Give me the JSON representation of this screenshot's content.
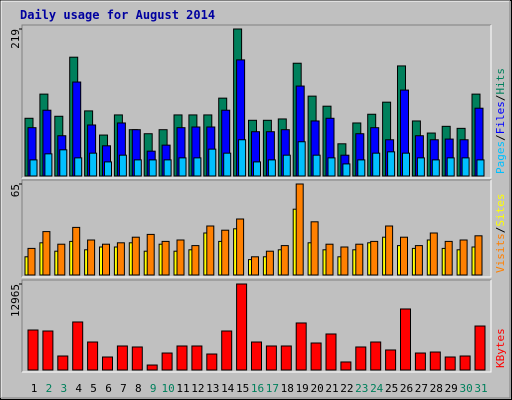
{
  "chart_data": [
    {
      "type": "bar",
      "title": "Daily usage for August 2014",
      "ylim": [
        0,
        219
      ],
      "yticks": [
        219
      ],
      "legend_separator": "/",
      "series": [
        {
          "name": "Hits",
          "color": "#00805c",
          "values": [
            86,
            122,
            89,
            177,
            97,
            61,
            91,
            69,
            63,
            69,
            91,
            91,
            91,
            116,
            219,
            83,
            83,
            85,
            168,
            119,
            104,
            48,
            79,
            92,
            110,
            164,
            82,
            64,
            74,
            71,
            122
          ]
        },
        {
          "name": "Files",
          "color": "#0000ff",
          "values": [
            72,
            98,
            60,
            140,
            76,
            45,
            79,
            69,
            37,
            46,
            72,
            73,
            73,
            98,
            173,
            66,
            66,
            69,
            134,
            82,
            86,
            31,
            63,
            72,
            54,
            128,
            60,
            54,
            55,
            54,
            101
          ]
        },
        {
          "name": "Pages",
          "color": "#00c0ff",
          "values": [
            24,
            33,
            39,
            27,
            34,
            21,
            31,
            24,
            24,
            24,
            27,
            27,
            40,
            34,
            54,
            21,
            24,
            31,
            51,
            31,
            27,
            18,
            24,
            34,
            36,
            34,
            27,
            24,
            27,
            27,
            24
          ]
        }
      ]
    },
    {
      "type": "bar",
      "ylim": [
        0,
        65
      ],
      "yticks": [
        65
      ],
      "legend_separator": "/",
      "series": [
        {
          "name": "Sites",
          "color": "#ffff00",
          "values": [
            13,
            23,
            17,
            24,
            18,
            20,
            20,
            23,
            17,
            22,
            17,
            18,
            30,
            24,
            33,
            11,
            13,
            18,
            47,
            23,
            18,
            13,
            18,
            23,
            27,
            21,
            19,
            25,
            19,
            18,
            20
          ]
        },
        {
          "name": "Visits",
          "color": "#ff8000",
          "values": [
            19,
            31,
            22,
            34,
            25,
            22,
            23,
            27,
            29,
            24,
            25,
            21,
            35,
            32,
            40,
            13,
            17,
            21,
            65,
            38,
            22,
            20,
            22,
            24,
            35,
            27,
            21,
            30,
            24,
            25,
            28
          ]
        }
      ]
    },
    {
      "type": "bar",
      "ylim": [
        0,
        12965
      ],
      "yticks": [
        12965
      ],
      "categories": [
        "1",
        "2",
        "3",
        "4",
        "5",
        "6",
        "7",
        "8",
        "9",
        "10",
        "11",
        "12",
        "13",
        "14",
        "15",
        "16",
        "17",
        "18",
        "19",
        "20",
        "21",
        "22",
        "23",
        "24",
        "25",
        "26",
        "27",
        "28",
        "29",
        "30",
        "31"
      ],
      "label_colors": [
        "#000000",
        "#00805c",
        "#00805c",
        "#000000",
        "#000000",
        "#000000",
        "#000000",
        "#000000",
        "#00805c",
        "#00805c",
        "#000000",
        "#000000",
        "#000000",
        "#000000",
        "#000000",
        "#00805c",
        "#00805c",
        "#000000",
        "#000000",
        "#000000",
        "#000000",
        "#000000",
        "#00805c",
        "#00805c",
        "#000000",
        "#000000",
        "#000000",
        "#000000",
        "#000000",
        "#00805c",
        "#00805c"
      ],
      "series": [
        {
          "name": "KBytes",
          "color": "#ff0000",
          "values": [
            6030,
            5880,
            2110,
            7240,
            4220,
            1960,
            3620,
            3470,
            750,
            2560,
            3620,
            3620,
            2410,
            5880,
            12965,
            4220,
            3620,
            3620,
            7090,
            4070,
            5430,
            1210,
            3470,
            4220,
            3020,
            9200,
            2560,
            2710,
            1960,
            2110,
            6630
          ]
        }
      ]
    }
  ]
}
